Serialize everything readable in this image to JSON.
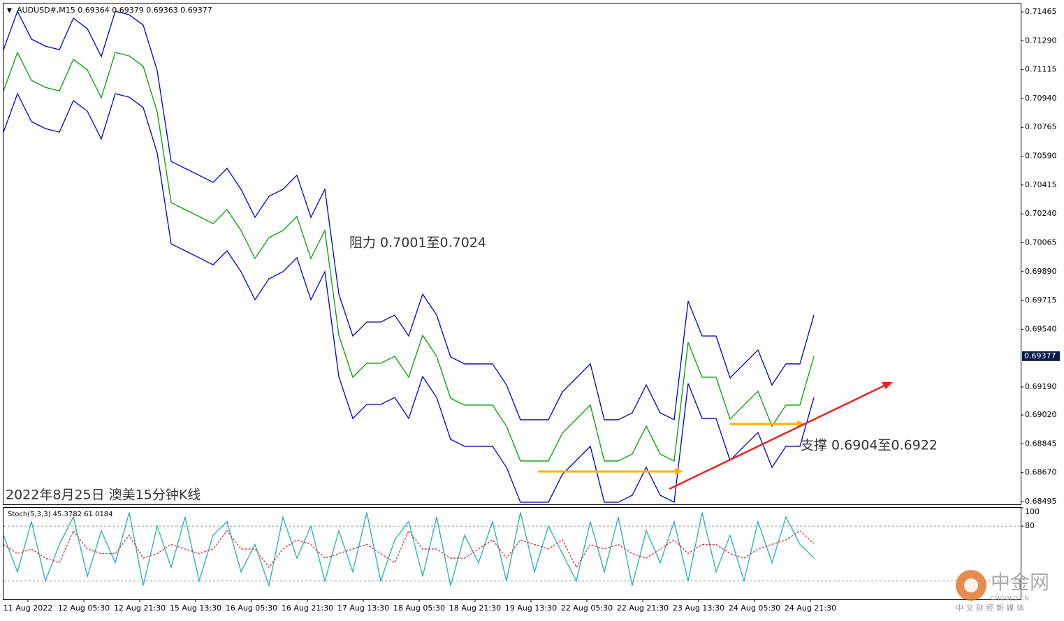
{
  "chart_data": [
    {
      "type": "line",
      "header": "AUDUSD#,M15  0.69364 0.69379 0.69363 0.69377",
      "title": "2022年8月25日 澳美15分钟K线",
      "annotations": [
        "阻力 0.7001至0.7024",
        "支撑 0.6904至0.6922"
      ],
      "x_labels": [
        "11 Aug 2022",
        "12 Aug 05:30",
        "12 Aug 21:30",
        "15 Aug 13:30",
        "16 Aug 05:30",
        "16 Aug 21:30",
        "17 Aug 13:30",
        "18 Aug 05:30",
        "18 Aug 21:30",
        "19 Aug 13:30",
        "22 Aug 05:30",
        "22 Aug 21:30",
        "23 Aug 13:30",
        "24 Aug 05:30",
        "24 Aug 21:30"
      ],
      "ylim": [
        0.68478,
        0.71516
      ],
      "yticks": [
        0.71465,
        {
          "value": 0.7129,
          "label": "0.71290"
        },
        0.71115,
        {
          "value": 0.7094,
          "label": "0.70940"
        },
        0.70765,
        {
          "value": 0.7059,
          "label": "0.70590"
        },
        0.70415,
        {
          "value": 0.7024,
          "label": "0.70240"
        },
        0.70065,
        {
          "value": 0.6989,
          "label": "0.69890"
        },
        0.69715,
        {
          "value": 0.6954,
          "label": "0.69540"
        },
        {
          "value": 0.6919,
          "label": "0.69190"
        },
        {
          "value": 0.6902,
          "label": "0.69020"
        },
        0.68845,
        {
          "value": 0.6867,
          "label": "0.68670"
        },
        0.68495
      ],
      "current_price": 0.69377,
      "series": [
        {
          "color": "#00a000",
          "values": [
            0.70986,
            0.71219,
            0.7105,
            0.71007,
            0.70986,
            0.71177,
            0.71113,
            0.70944,
            0.71219,
            0.71198,
            0.71135,
            0.70859,
            0.70308,
            0.70266,
            0.70224,
            0.70181,
            0.70266,
            0.70139,
            0.69969,
            0.70096,
            0.70139,
            0.70224,
            0.69969,
            0.70139,
            0.69503,
            0.69249,
            0.69334,
            0.69334,
            0.69376,
            0.69249,
            0.69503,
            0.69376,
            0.69122,
            0.6908,
            0.6908,
            0.6908,
            0.68952,
            0.68741,
            0.68741,
            0.68741,
            0.6891,
            0.68995,
            0.6908,
            0.68741,
            0.68741,
            0.68783,
            0.68952,
            0.68783,
            0.68741,
            0.69461,
            0.69249,
            0.69249,
            0.68995,
            0.6908,
            0.69164,
            0.68952,
            0.6908,
            0.6908,
            0.69376
          ]
        },
        {
          "color": "#0000cd",
          "values": [
            0.71236,
            0.71469,
            0.713,
            0.71257,
            0.71236,
            0.71427,
            0.71363,
            0.71194,
            0.71469,
            0.71448,
            0.71385,
            0.71109,
            0.70558,
            0.70516,
            0.70474,
            0.70431,
            0.70516,
            0.70389,
            0.70219,
            0.70346,
            0.70389,
            0.70474,
            0.70219,
            0.70389,
            0.69753,
            0.69499,
            0.69584,
            0.69584,
            0.69626,
            0.69499,
            0.69753,
            0.69626,
            0.69372,
            0.6933,
            0.6933,
            0.6933,
            0.69202,
            0.68991,
            0.68991,
            0.68991,
            0.6916,
            0.69245,
            0.6933,
            0.68991,
            0.68991,
            0.69033,
            0.69202,
            0.69033,
            0.68991,
            0.69711,
            0.69499,
            0.69499,
            0.69245,
            0.6933,
            0.69414,
            0.69202,
            0.6933,
            0.6933,
            0.69626
          ]
        },
        {
          "color": "#0000cd",
          "values": [
            0.70736,
            0.70969,
            0.708,
            0.70757,
            0.70736,
            0.70927,
            0.70863,
            0.70694,
            0.70969,
            0.70948,
            0.70885,
            0.70609,
            0.70058,
            0.70016,
            0.69974,
            0.69931,
            0.70016,
            0.69889,
            0.69719,
            0.69846,
            0.69889,
            0.69974,
            0.69719,
            0.69889,
            0.69253,
            0.68999,
            0.69084,
            0.69084,
            0.69126,
            0.68999,
            0.69253,
            0.69126,
            0.68872,
            0.6883,
            0.6883,
            0.6883,
            0.68702,
            0.68491,
            0.68491,
            0.68491,
            0.6866,
            0.68745,
            0.6883,
            0.68491,
            0.68491,
            0.68533,
            0.68702,
            0.68533,
            0.68491,
            0.69211,
            0.68999,
            0.68999,
            0.68745,
            0.6883,
            0.68914,
            0.68702,
            0.6883,
            0.6883,
            0.69126
          ]
        }
      ]
    },
    {
      "type": "line",
      "header": "Stoch(5,3,3) 45.3782 61.0184",
      "ylim": [
        0,
        100
      ],
      "yticks": [
        100,
        80
      ],
      "levels": [
        80,
        20
      ],
      "series": [
        {
          "color": "#20b2aa",
          "style": "solid",
          "values": [
            70,
            30,
            85,
            20,
            60,
            90,
            25,
            75,
            40,
            95,
            15,
            80,
            35,
            90,
            20,
            70,
            85,
            30,
            60,
            15,
            90,
            45,
            80,
            20,
            75,
            30,
            95,
            20,
            65,
            85,
            25,
            90,
            15,
            70,
            40,
            85,
            20,
            95,
            30,
            80,
            50,
            20,
            85,
            30,
            90,
            15,
            75,
            40,
            85,
            20,
            95,
            30,
            70,
            20,
            85,
            40,
            90,
            60,
            45.3782
          ]
        },
        {
          "color": "#e03030",
          "style": "dashed",
          "values": [
            60,
            50,
            55,
            45,
            40,
            75,
            55,
            50,
            50,
            70,
            45,
            50,
            60,
            55,
            50,
            55,
            75,
            55,
            55,
            35,
            55,
            65,
            60,
            45,
            50,
            55,
            60,
            50,
            40,
            75,
            55,
            55,
            45,
            45,
            55,
            65,
            45,
            65,
            60,
            55,
            65,
            35,
            60,
            55,
            60,
            50,
            45,
            55,
            65,
            50,
            60,
            60,
            50,
            45,
            55,
            60,
            65,
            75,
            61.0184
          ]
        }
      ]
    }
  ],
  "watermark": {
    "brand": "中金网",
    "site": "CNGOLD.CN",
    "slogan": "中 文 财 经 新 媒 体"
  }
}
